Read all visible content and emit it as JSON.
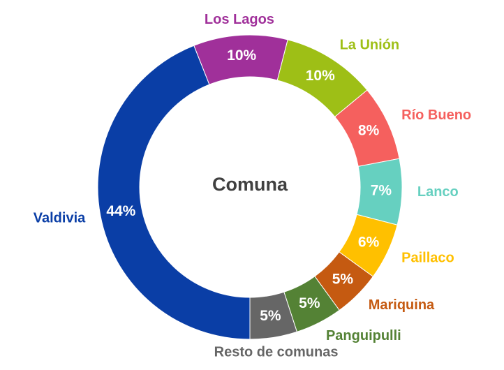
{
  "chart_data": {
    "type": "donut",
    "title": "Comuna",
    "categories": [
      "Los Lagos",
      "La Unión",
      "Río Bueno",
      "Lanco",
      "Paillaco",
      "Mariquina",
      "Panguipulli",
      "Resto de comunas",
      "Valdivia"
    ],
    "values": [
      10,
      10,
      8,
      7,
      6,
      5,
      5,
      5,
      44
    ],
    "value_labels": [
      "10%",
      "10%",
      "8%",
      "7%",
      "6%",
      "5%",
      "5%",
      "5%",
      "44%"
    ],
    "colors": [
      "#a0309a",
      "#9ebf16",
      "#f5605e",
      "#66d0c0",
      "#ffc000",
      "#c55a11",
      "#548235",
      "#666666",
      "#0a3ea6"
    ]
  }
}
